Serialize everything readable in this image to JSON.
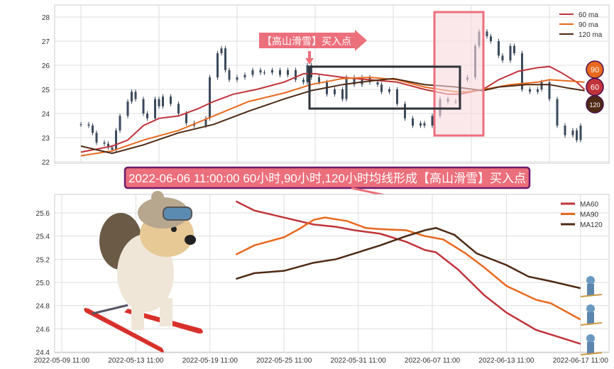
{
  "colors": {
    "ma60": "#c0343a",
    "ma90": "#e8691e",
    "ma120": "#4e2a14",
    "candle": "#3b4a5e",
    "annotation": "#ec6f7c",
    "banner_border": "#6b1a6b",
    "box": "#2f3338"
  },
  "chart_data": [
    {
      "type": "candlestick",
      "title": "",
      "ylim": [
        22,
        28.5
      ],
      "yticks": [
        22,
        23,
        24,
        25,
        26,
        27,
        28
      ],
      "grid": true,
      "legend_position": "top-right",
      "candles_close": [
        [
          0,
          23.55
        ],
        [
          2,
          23.5
        ],
        [
          3,
          23.2
        ],
        [
          4,
          22.8
        ],
        [
          6,
          22.75
        ],
        [
          7,
          22.6
        ],
        [
          8,
          22.5
        ],
        [
          9,
          23.3
        ],
        [
          10,
          23.9
        ],
        [
          12,
          24.5
        ],
        [
          13,
          24.9
        ],
        [
          14,
          24.6
        ],
        [
          16,
          24.0
        ],
        [
          17,
          23.8
        ],
        [
          19,
          24.6
        ],
        [
          20,
          24.3
        ],
        [
          21,
          24.7
        ],
        [
          23,
          24.4
        ],
        [
          25,
          24.0
        ],
        [
          27,
          23.6
        ],
        [
          29,
          23.5
        ],
        [
          32,
          23.8
        ],
        [
          33,
          25.5
        ],
        [
          35,
          26.5
        ],
        [
          36,
          26.7
        ],
        [
          37,
          25.8
        ],
        [
          38,
          25.4
        ],
        [
          40,
          25.5
        ],
        [
          42,
          25.6
        ],
        [
          44,
          25.8
        ],
        [
          46,
          25.7
        ],
        [
          47,
          25.7
        ],
        [
          49,
          25.8
        ],
        [
          51,
          25.6
        ],
        [
          53,
          25.8
        ],
        [
          55,
          25.4
        ],
        [
          57,
          25.3
        ],
        [
          58,
          26.0
        ],
        [
          59,
          25.5
        ],
        [
          61,
          25.3
        ],
        [
          63,
          24.8
        ],
        [
          65,
          25.0
        ],
        [
          67,
          24.6
        ],
        [
          68,
          25.5
        ],
        [
          70,
          25.2
        ],
        [
          72,
          25.5
        ],
        [
          74,
          25.3
        ],
        [
          76,
          25.2
        ],
        [
          77,
          24.9
        ],
        [
          79,
          25.0
        ],
        [
          81,
          24.4
        ],
        [
          83,
          23.8
        ],
        [
          85,
          23.5
        ],
        [
          87,
          23.6
        ],
        [
          88,
          23.5
        ],
        [
          90,
          23.9
        ],
        [
          92,
          24.6
        ],
        [
          94,
          24.5
        ],
        [
          96,
          24.5
        ],
        [
          97,
          25.4
        ],
        [
          99,
          25.5
        ],
        [
          101,
          26.8
        ],
        [
          102,
          27.4
        ],
        [
          104,
          27.2
        ],
        [
          105,
          27.0
        ],
        [
          107,
          26.4
        ],
        [
          108,
          26.2
        ],
        [
          110,
          26.8
        ],
        [
          111,
          26.5
        ],
        [
          113,
          25.0
        ],
        [
          115,
          24.9
        ],
        [
          117,
          25.0
        ],
        [
          118,
          25.3
        ],
        [
          120,
          24.6
        ],
        [
          122,
          23.5
        ],
        [
          124,
          23.1
        ],
        [
          126,
          23.3
        ],
        [
          127,
          22.9
        ],
        [
          128,
          23.5
        ]
      ],
      "series": [
        {
          "name": "60 ma",
          "key": "ma60",
          "points": [
            [
              0,
              22.4
            ],
            [
              8,
              22.65
            ],
            [
              12,
              22.9
            ],
            [
              16,
              23.5
            ],
            [
              20,
              23.8
            ],
            [
              25,
              23.9
            ],
            [
              30,
              24.2
            ],
            [
              34,
              24.5
            ],
            [
              39,
              24.8
            ],
            [
              45,
              25.0
            ],
            [
              52,
              25.3
            ],
            [
              57,
              25.65
            ],
            [
              60,
              25.65
            ],
            [
              67,
              25.5
            ],
            [
              74,
              25.4
            ],
            [
              81,
              25.3
            ],
            [
              88,
              25.0
            ],
            [
              94,
              24.8
            ],
            [
              97,
              24.8
            ],
            [
              103,
              25.0
            ],
            [
              107,
              25.4
            ],
            [
              112,
              25.75
            ],
            [
              117,
              25.9
            ],
            [
              120,
              25.95
            ],
            [
              123,
              25.7
            ],
            [
              127,
              25.3
            ],
            [
              129,
              25.0
            ]
          ]
        },
        {
          "name": "90 ma",
          "key": "ma90",
          "points": [
            [
              0,
              22.25
            ],
            [
              8,
              22.45
            ],
            [
              16,
              22.9
            ],
            [
              25,
              23.3
            ],
            [
              34,
              23.9
            ],
            [
              43,
              24.5
            ],
            [
              52,
              24.85
            ],
            [
              59,
              25.2
            ],
            [
              67,
              25.45
            ],
            [
              74,
              25.5
            ],
            [
              81,
              25.4
            ],
            [
              88,
              25.1
            ],
            [
              96,
              24.9
            ],
            [
              99,
              24.9
            ],
            [
              105,
              25.05
            ],
            [
              110,
              25.2
            ],
            [
              117,
              25.3
            ],
            [
              120,
              25.4
            ],
            [
              125,
              25.35
            ],
            [
              129,
              25.3
            ]
          ]
        },
        {
          "name": "120 ma",
          "key": "ma120",
          "points": [
            [
              0,
              22.65
            ],
            [
              8,
              22.35
            ],
            [
              16,
              22.7
            ],
            [
              25,
              23.2
            ],
            [
              34,
              23.55
            ],
            [
              43,
              24.1
            ],
            [
              52,
              24.6
            ],
            [
              59,
              24.95
            ],
            [
              67,
              25.2
            ],
            [
              74,
              25.35
            ],
            [
              80,
              25.45
            ],
            [
              88,
              25.2
            ],
            [
              96,
              25.1
            ],
            [
              103,
              24.95
            ],
            [
              107,
              25.1
            ],
            [
              114,
              25.2
            ],
            [
              120,
              25.2
            ],
            [
              125,
              25.05
            ],
            [
              129,
              24.95
            ]
          ]
        }
      ],
      "badges": [
        {
          "label": "90",
          "key": "ma90"
        },
        {
          "label": "60",
          "key": "ma60"
        },
        {
          "label": "120",
          "key": "ma120"
        }
      ],
      "annotation": "【高山滑雪】买入点"
    },
    {
      "type": "line",
      "title": "",
      "ylim": [
        24.4,
        25.72
      ],
      "yticks": [
        24.4,
        24.6,
        24.8,
        25.0,
        25.2,
        25.4,
        25.6
      ],
      "xticks": [
        [
          0,
          "2022-05-09 11:00"
        ],
        [
          20,
          "2022-05-13 11:00"
        ],
        [
          40,
          "2022-05-19 11:00"
        ],
        [
          60,
          "2022-05-25 11:00"
        ],
        [
          80,
          "2022-05-31 11:00"
        ],
        [
          100,
          "2022-06-07 11:00"
        ],
        [
          120,
          "2022-06-13 11:00"
        ],
        [
          140,
          "2022-06-17 11:00"
        ]
      ],
      "grid": true,
      "legend_position": "top-right",
      "series": [
        {
          "name": "MA60",
          "key": "ma60",
          "points": [
            [
              47,
              25.7
            ],
            [
              52,
              25.62
            ],
            [
              60,
              25.56
            ],
            [
              68,
              25.5
            ],
            [
              74,
              25.48
            ],
            [
              79,
              25.45
            ],
            [
              86,
              25.42
            ],
            [
              93,
              25.35
            ],
            [
              98,
              25.28
            ],
            [
              101,
              25.26
            ],
            [
              107,
              25.11
            ],
            [
              114,
              24.89
            ],
            [
              120,
              24.74
            ],
            [
              128,
              24.59
            ],
            [
              134,
              24.53
            ],
            [
              140,
              24.47
            ]
          ]
        },
        {
          "name": "MA90",
          "key": "ma90",
          "points": [
            [
              47,
              25.24
            ],
            [
              52,
              25.32
            ],
            [
              60,
              25.39
            ],
            [
              64,
              25.46
            ],
            [
              68,
              25.54
            ],
            [
              71,
              25.56
            ],
            [
              77,
              25.53
            ],
            [
              82,
              25.47
            ],
            [
              86,
              25.46
            ],
            [
              93,
              25.45
            ],
            [
              98,
              25.4
            ],
            [
              103,
              25.37
            ],
            [
              109,
              25.25
            ],
            [
              114,
              25.13
            ],
            [
              120,
              24.97
            ],
            [
              128,
              24.85
            ],
            [
              132,
              24.82
            ],
            [
              140,
              24.68
            ]
          ]
        },
        {
          "name": "MA120",
          "key": "ma120",
          "points": [
            [
              47,
              25.03
            ],
            [
              52,
              25.08
            ],
            [
              60,
              25.1
            ],
            [
              68,
              25.17
            ],
            [
              74,
              25.2
            ],
            [
              80,
              25.26
            ],
            [
              86,
              25.32
            ],
            [
              93,
              25.4
            ],
            [
              98,
              25.45
            ],
            [
              101,
              25.47
            ],
            [
              106,
              25.41
            ],
            [
              112,
              25.25
            ],
            [
              120,
              25.15
            ],
            [
              126,
              25.05
            ],
            [
              132,
              25.01
            ],
            [
              140,
              24.95
            ]
          ]
        }
      ]
    }
  ],
  "banner": "2022-06-06 11:00:00 60小时,90小时,120小时均线形成【高山滑雪】买入点"
}
